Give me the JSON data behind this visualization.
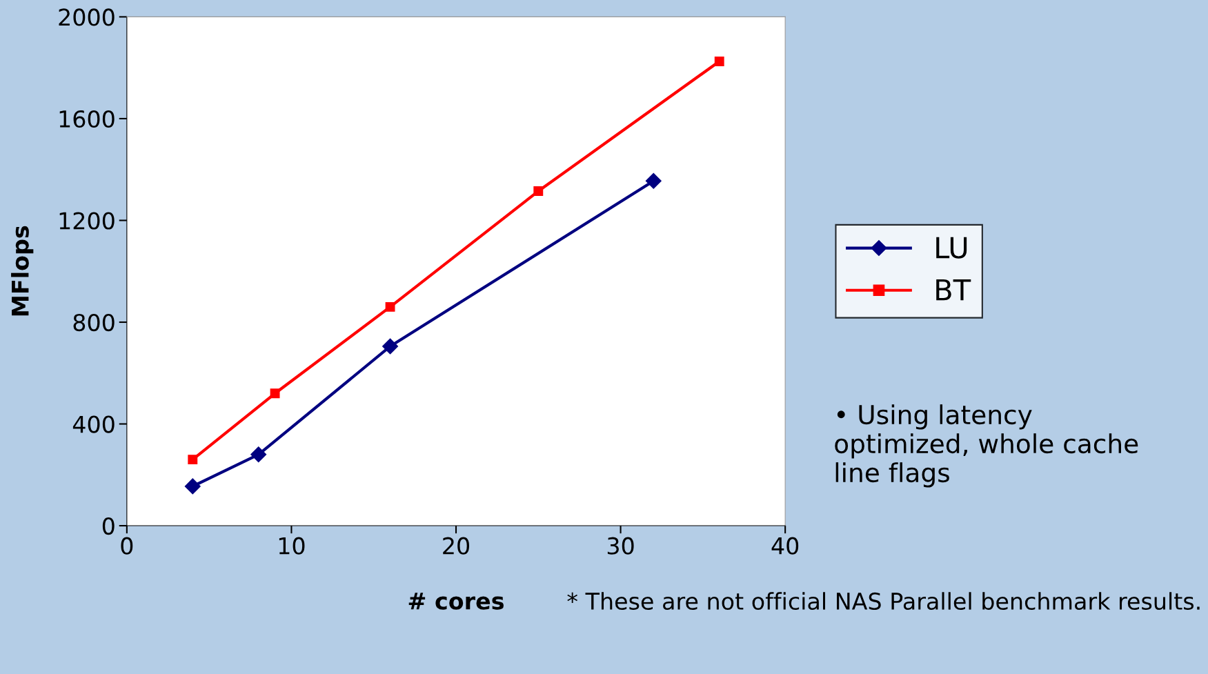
{
  "chart_data": {
    "type": "line",
    "xlabel": "# cores",
    "ylabel": "MFlops",
    "xlim": [
      0,
      40
    ],
    "xticks": [
      0,
      10,
      20,
      30,
      40
    ],
    "ylim": [
      0,
      2000
    ],
    "yticks": [
      0,
      400,
      800,
      1200,
      1600,
      2000
    ],
    "grid": false,
    "legend": "right",
    "series": [
      {
        "name": "LU",
        "color": "#000080",
        "marker": "diamond",
        "x": [
          4,
          8,
          16,
          32
        ],
        "values": [
          155,
          280,
          705,
          1355
        ]
      },
      {
        "name": "BT",
        "color": "#ff0000",
        "marker": "square",
        "x": [
          4,
          9,
          16,
          25,
          36
        ],
        "values": [
          260,
          520,
          860,
          1315,
          1825
        ]
      }
    ],
    "annotations": [
      "• Using latency optimized, whole cache line flags",
      "* These are not official NAS Parallel benchmark results."
    ]
  }
}
